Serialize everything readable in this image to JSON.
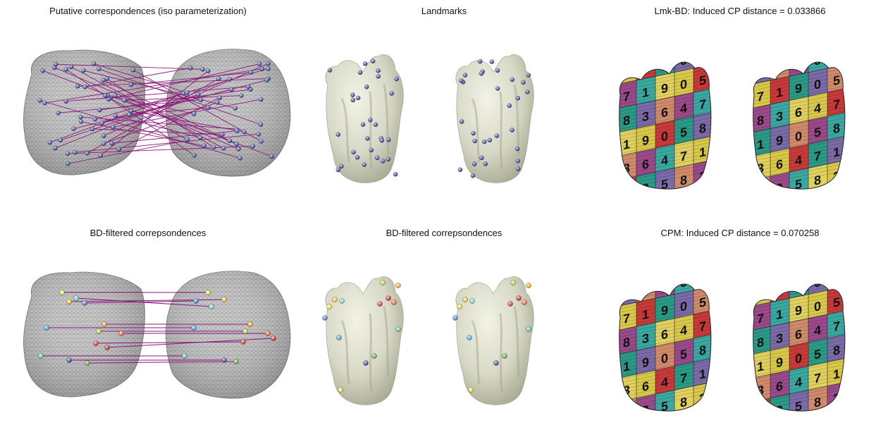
{
  "figure": {
    "panels": [
      {
        "title": "Putative correspondences (iso parameterization)",
        "kind": "disk-matches"
      },
      {
        "title": "Landmarks",
        "kind": "teeth-landmarks"
      },
      {
        "title": "Lmk-BD: Induced CP distance = 0.033866",
        "kind": "teeth-texture"
      },
      {
        "title": "BD-filtered correpsondences",
        "kind": "disk-filtered"
      },
      {
        "title": "BD-filtered correpsondences",
        "kind": "teeth-colored-landmarks"
      },
      {
        "title": "CPM: Induced CP distance = 0.070258",
        "kind": "teeth-texture"
      }
    ]
  },
  "colors": {
    "mesh_fill": "#c8c8c8",
    "mesh_wire": "#8a8a8a",
    "match_line": "#8b1a7a",
    "landmark": "#2a3a9c",
    "tooth_fill": "#d7d8c6",
    "tooth_shadow": "#a9ab94",
    "texture_palette": [
      "#d8c84a",
      "#c83a3a",
      "#2a9a86",
      "#7a6aa8",
      "#cf8a6a",
      "#9a4a8a",
      "#3aa8a0",
      "#e0d060"
    ]
  },
  "texture_digits": [
    "5",
    "8",
    "3",
    "6",
    "4",
    "7",
    "1",
    "9",
    "0"
  ]
}
